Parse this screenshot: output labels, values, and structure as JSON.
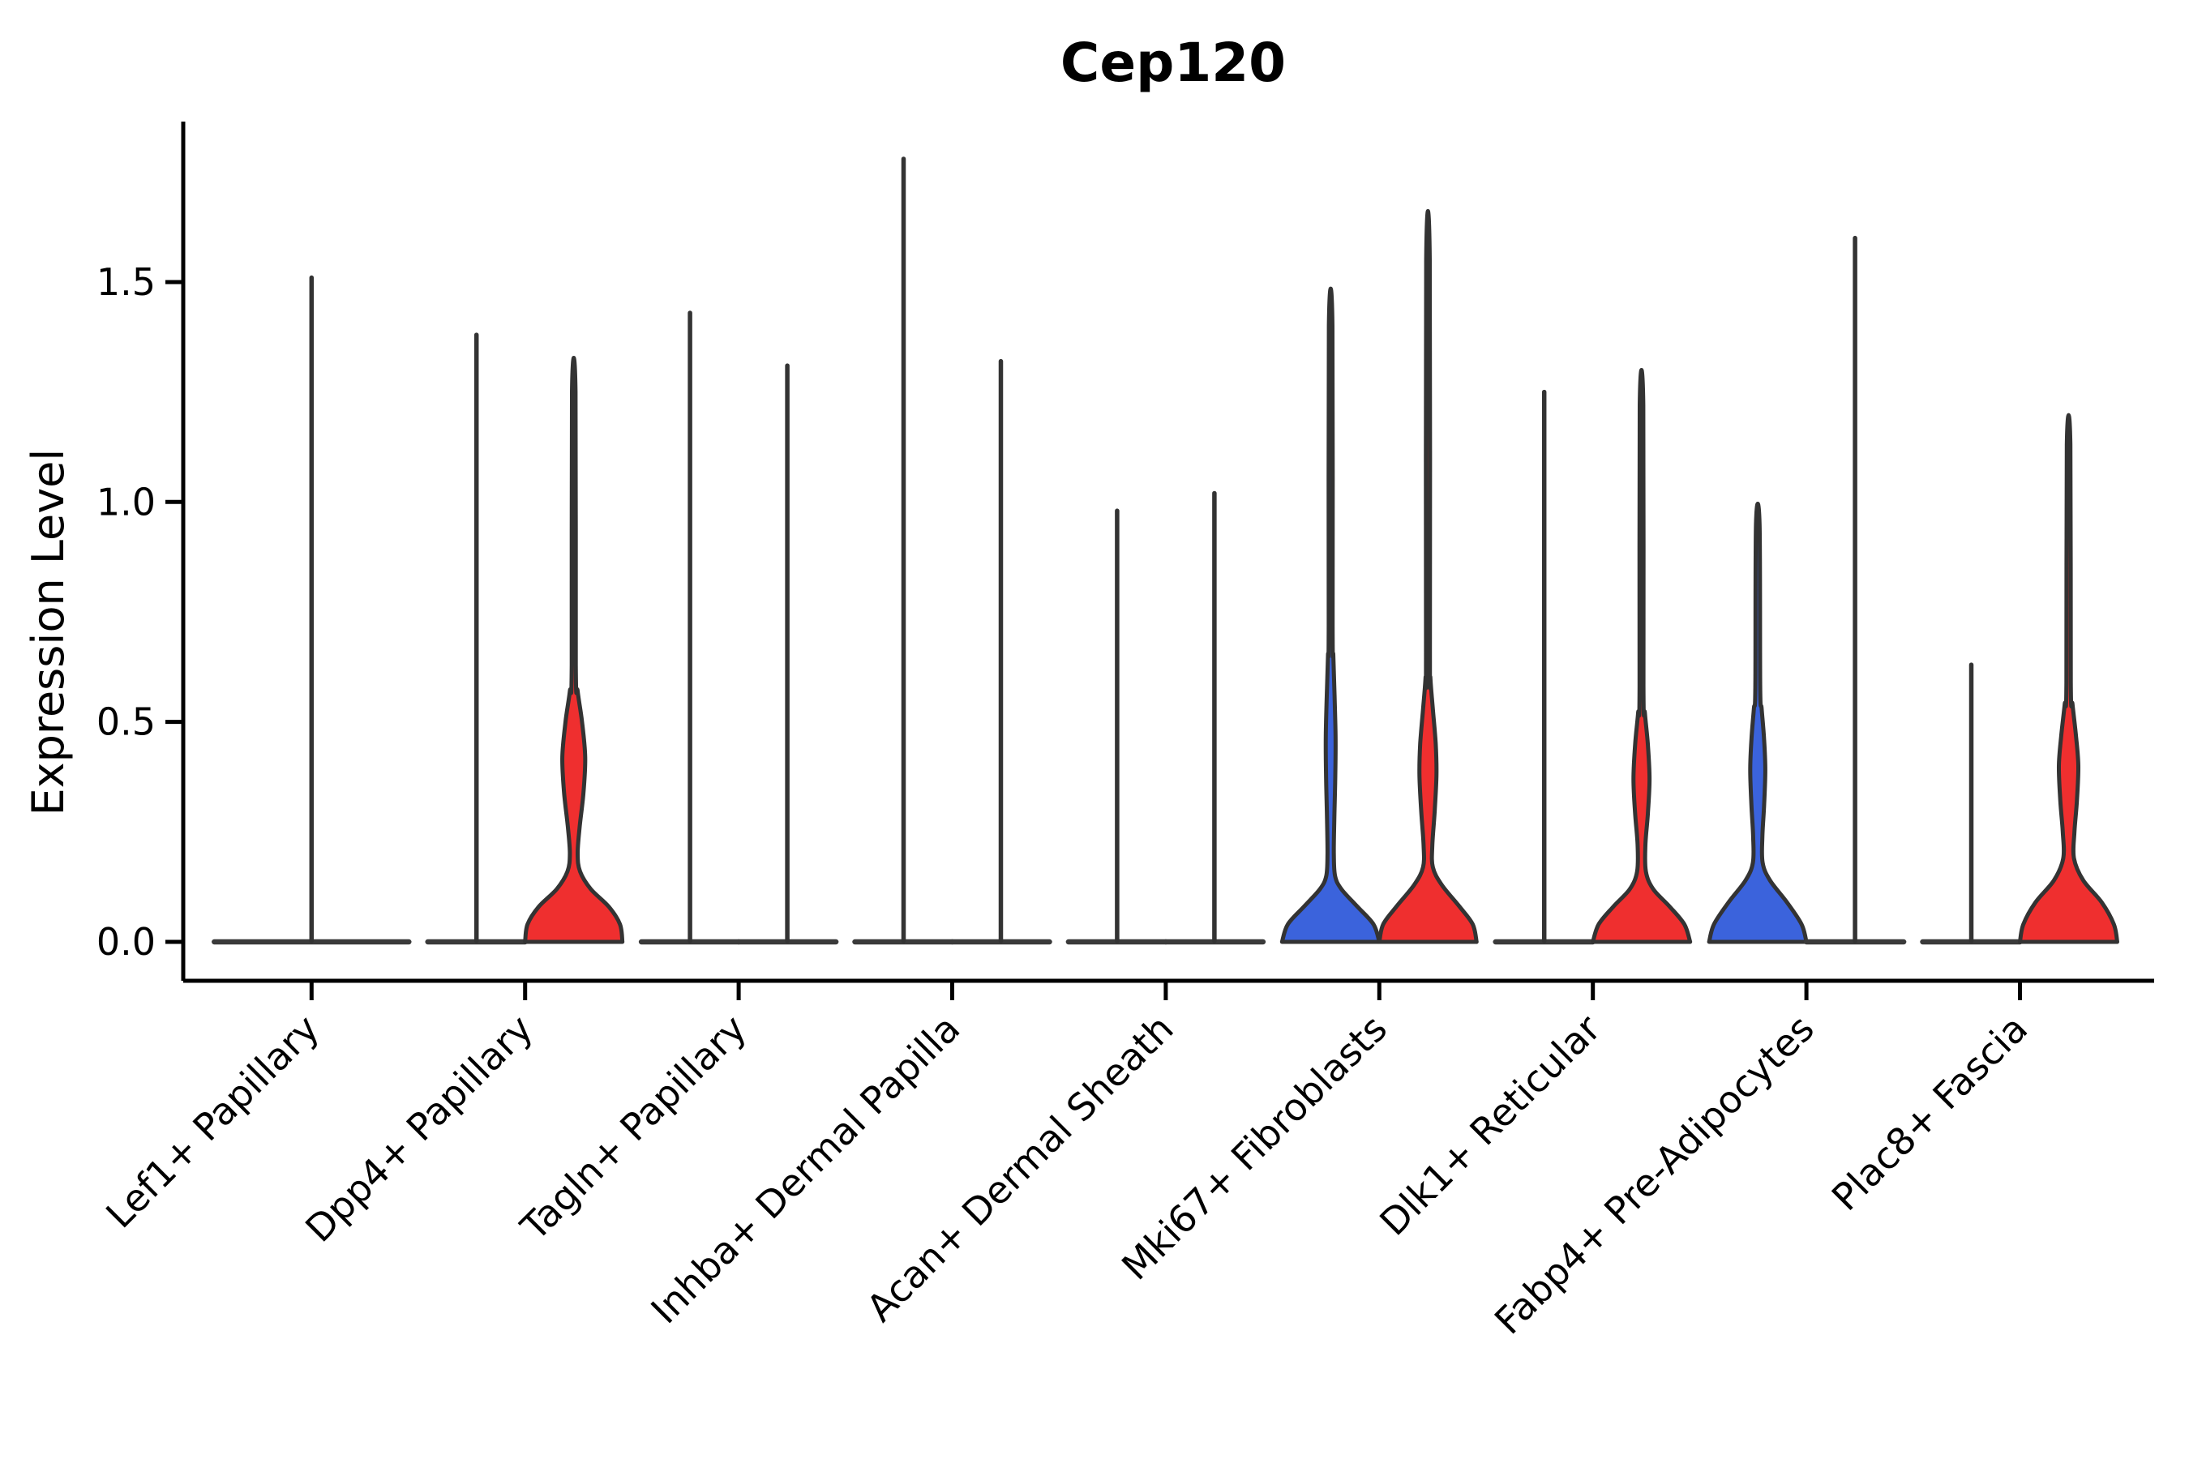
{
  "title": "Cep120",
  "ylabel": "Expression Level",
  "colors": {
    "red": "#ef2f2f",
    "blue": "#3b63dc",
    "outline": "#333333",
    "flat_line": "#3a3a3a",
    "axis": "#000000"
  },
  "chart_data": {
    "type": "violin",
    "title": "Cep120",
    "xlabel": "",
    "ylabel": "Expression Level",
    "ylim": [
      -0.09,
      1.87
    ],
    "grid": false,
    "legend": "none",
    "yticks": [
      {
        "label": "0.0",
        "value": 0.0
      },
      {
        "label": "0.5",
        "value": 0.5
      },
      {
        "label": "1.0",
        "value": 1.0
      },
      {
        "label": "1.5",
        "value": 1.5
      }
    ],
    "categories": [
      "Lef1+ Papillary",
      "Dpp4+ Papillary",
      "Tagln+ Papillary",
      "Inhba+ Dermal Papilla",
      "Acan+ Dermal Sheath",
      "Mki67+ Fibroblasts",
      "Dlk1+ Reticular",
      "Fabp4+ Pre-Adipocytes",
      "Plac8+ Fascia"
    ],
    "violins": [
      {
        "category_index": 0,
        "category": "Lef1+ Papillary",
        "side": 0,
        "color": "none",
        "shape": "collapsed",
        "width_scale": 2.0,
        "max": 1.51
      },
      {
        "category_index": 1,
        "category": "Dpp4+ Papillary",
        "side": -1,
        "color": "none",
        "shape": "collapsed",
        "width_scale": 1.0,
        "max": 1.38
      },
      {
        "category_index": 1,
        "category": "Dpp4+ Papillary",
        "side": 1,
        "color": "red",
        "shape": "density",
        "width_scale": 1.0,
        "max": 1.25,
        "profile": [
          [
            0,
            1
          ],
          [
            0.04,
            0.95
          ],
          [
            0.08,
            0.72
          ],
          [
            0.12,
            0.35
          ],
          [
            0.16,
            0.13
          ],
          [
            0.2,
            0.08
          ],
          [
            0.26,
            0.12
          ],
          [
            0.34,
            0.2
          ],
          [
            0.42,
            0.235
          ],
          [
            0.5,
            0.17
          ],
          [
            0.57,
            0.08
          ],
          [
            0.63,
            0.042
          ]
        ]
      },
      {
        "category_index": 2,
        "category": "Tagln+ Papillary",
        "side": -1,
        "color": "none",
        "shape": "collapsed",
        "width_scale": 1.0,
        "max": 1.43
      },
      {
        "category_index": 2,
        "category": "Tagln+ Papillary",
        "side": 1,
        "color": "none",
        "shape": "collapsed",
        "width_scale": 1.0,
        "max": 1.31
      },
      {
        "category_index": 3,
        "category": "Inhba+ Dermal Papilla",
        "side": -1,
        "color": "none",
        "shape": "collapsed",
        "width_scale": 1.0,
        "max": 1.78
      },
      {
        "category_index": 3,
        "category": "Inhba+ Dermal Papilla",
        "side": 1,
        "color": "none",
        "shape": "collapsed",
        "width_scale": 1.0,
        "max": 1.32
      },
      {
        "category_index": 4,
        "category": "Acan+ Dermal Sheath",
        "side": -1,
        "color": "none",
        "shape": "collapsed",
        "width_scale": 1.0,
        "max": 0.98
      },
      {
        "category_index": 4,
        "category": "Acan+ Dermal Sheath",
        "side": 1,
        "color": "none",
        "shape": "collapsed",
        "width_scale": 1.0,
        "max": 1.02
      },
      {
        "category_index": 5,
        "category": "Mki67+ Fibroblasts",
        "side": -1,
        "color": "blue",
        "shape": "density",
        "width_scale": 1.0,
        "max": 1.4,
        "profile": [
          [
            0,
            1
          ],
          [
            0.04,
            0.88
          ],
          [
            0.08,
            0.55
          ],
          [
            0.12,
            0.22
          ],
          [
            0.15,
            0.09
          ],
          [
            0.2,
            0.065
          ],
          [
            0.28,
            0.075
          ],
          [
            0.38,
            0.095
          ],
          [
            0.47,
            0.1
          ],
          [
            0.56,
            0.08
          ],
          [
            0.65,
            0.055
          ],
          [
            0.72,
            0.04
          ]
        ]
      },
      {
        "category_index": 5,
        "category": "Mki67+ Fibroblasts",
        "side": 1,
        "color": "red",
        "shape": "density",
        "width_scale": 1.0,
        "max": 1.55,
        "profile": [
          [
            0,
            1
          ],
          [
            0.04,
            0.92
          ],
          [
            0.08,
            0.65
          ],
          [
            0.13,
            0.28
          ],
          [
            0.17,
            0.1
          ],
          [
            0.22,
            0.09
          ],
          [
            0.3,
            0.14
          ],
          [
            0.38,
            0.175
          ],
          [
            0.45,
            0.16
          ],
          [
            0.53,
            0.1
          ],
          [
            0.6,
            0.05
          ],
          [
            0.66,
            0.04
          ]
        ]
      },
      {
        "category_index": 6,
        "category": "Dlk1+ Reticular",
        "side": -1,
        "color": "none",
        "shape": "collapsed",
        "width_scale": 1.0,
        "max": 1.25
      },
      {
        "category_index": 6,
        "category": "Dlk1+ Reticular",
        "side": 1,
        "color": "red",
        "shape": "density",
        "width_scale": 1.0,
        "max": 1.22,
        "profile": [
          [
            0,
            1
          ],
          [
            0.04,
            0.88
          ],
          [
            0.08,
            0.58
          ],
          [
            0.12,
            0.24
          ],
          [
            0.16,
            0.09
          ],
          [
            0.22,
            0.08
          ],
          [
            0.29,
            0.13
          ],
          [
            0.37,
            0.165
          ],
          [
            0.45,
            0.13
          ],
          [
            0.52,
            0.07
          ],
          [
            0.58,
            0.04
          ]
        ]
      },
      {
        "category_index": 7,
        "category": "Fabp4+ Pre-Adipocytes",
        "side": -1,
        "color": "blue",
        "shape": "density",
        "width_scale": 1.0,
        "max": 0.95,
        "profile": [
          [
            0,
            1
          ],
          [
            0.04,
            0.9
          ],
          [
            0.09,
            0.6
          ],
          [
            0.14,
            0.25
          ],
          [
            0.18,
            0.1
          ],
          [
            0.24,
            0.095
          ],
          [
            0.31,
            0.13
          ],
          [
            0.39,
            0.155
          ],
          [
            0.46,
            0.13
          ],
          [
            0.53,
            0.08
          ],
          [
            0.58,
            0.05
          ]
        ]
      },
      {
        "category_index": 7,
        "category": "Fabp4+ Pre-Adipocytes",
        "side": 1,
        "color": "none",
        "shape": "collapsed",
        "width_scale": 1.0,
        "max": 1.6
      },
      {
        "category_index": 8,
        "category": "Plac8+ Fascia",
        "side": -1,
        "color": "none",
        "shape": "collapsed",
        "width_scale": 1.0,
        "max": 0.63
      },
      {
        "category_index": 8,
        "category": "Plac8+ Fascia",
        "side": 1,
        "color": "red",
        "shape": "density",
        "width_scale": 1.0,
        "max": 1.13,
        "profile": [
          [
            0,
            1
          ],
          [
            0.04,
            0.93
          ],
          [
            0.09,
            0.68
          ],
          [
            0.14,
            0.3
          ],
          [
            0.19,
            0.11
          ],
          [
            0.25,
            0.12
          ],
          [
            0.32,
            0.17
          ],
          [
            0.4,
            0.2
          ],
          [
            0.47,
            0.15
          ],
          [
            0.54,
            0.08
          ],
          [
            0.59,
            0.045
          ]
        ]
      }
    ]
  }
}
